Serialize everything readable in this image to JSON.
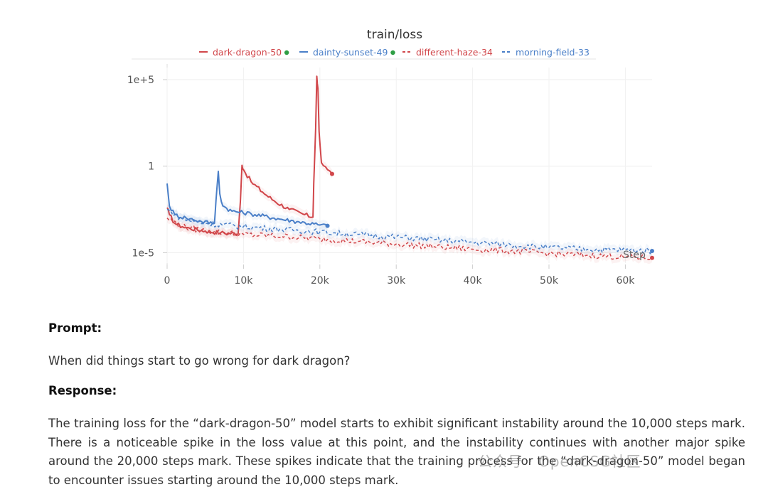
{
  "chart_data": {
    "type": "line",
    "title": "train/loss",
    "xlabel": "Step",
    "ylabel": "",
    "yscale": "log",
    "ylim_log10": [
      -5.6,
      5.7
    ],
    "xlim": [
      0,
      63500
    ],
    "x_ticks": [
      {
        "value": 0,
        "label": "0"
      },
      {
        "value": 10000,
        "label": "10k"
      },
      {
        "value": 20000,
        "label": "20k"
      },
      {
        "value": 30000,
        "label": "30k"
      },
      {
        "value": 40000,
        "label": "40k"
      },
      {
        "value": 50000,
        "label": "50k"
      },
      {
        "value": 60000,
        "label": "60k"
      }
    ],
    "y_ticks": [
      {
        "log10": 5,
        "label": "1e+5"
      },
      {
        "log10": 0,
        "label": "1"
      },
      {
        "log10": -5,
        "label": "1e-5"
      }
    ],
    "series": [
      {
        "name": "dark-dragon-50",
        "color": "#d1464a",
        "dash": "solid",
        "live": true,
        "points": [
          [
            0,
            -2.4
          ],
          [
            300,
            -2.8
          ],
          [
            1000,
            -3.3
          ],
          [
            2000,
            -3.5
          ],
          [
            3000,
            -3.6
          ],
          [
            5000,
            -3.75
          ],
          [
            7000,
            -3.85
          ],
          [
            9300,
            -3.9
          ],
          [
            9600,
            -2.0
          ],
          [
            9800,
            0.05
          ],
          [
            10000,
            -0.2
          ],
          [
            11000,
            -0.9
          ],
          [
            12500,
            -1.5
          ],
          [
            14000,
            -2.0
          ],
          [
            16000,
            -2.5
          ],
          [
            18000,
            -2.8
          ],
          [
            19100,
            -2.95
          ],
          [
            19200,
            -1.0
          ],
          [
            19450,
            2.2
          ],
          [
            19600,
            5.2
          ],
          [
            19750,
            4.5
          ],
          [
            19900,
            2.0
          ],
          [
            20200,
            0.2
          ],
          [
            21000,
            -0.2
          ],
          [
            21600,
            -0.45
          ]
        ]
      },
      {
        "name": "dainty-sunset-49",
        "color": "#4a7fc8",
        "dash": "solid",
        "live": true,
        "points": [
          [
            0,
            -1.0
          ],
          [
            300,
            -2.3
          ],
          [
            1000,
            -2.8
          ],
          [
            2500,
            -3.0
          ],
          [
            4500,
            -3.2
          ],
          [
            6200,
            -3.3
          ],
          [
            6400,
            -2.0
          ],
          [
            6700,
            -0.3
          ],
          [
            6900,
            -1.6
          ],
          [
            7300,
            -2.3
          ],
          [
            8500,
            -2.6
          ],
          [
            11000,
            -2.75
          ],
          [
            14000,
            -3.0
          ],
          [
            17000,
            -3.2
          ],
          [
            20000,
            -3.4
          ],
          [
            21000,
            -3.45
          ]
        ]
      },
      {
        "name": "different-haze-34",
        "color": "#d1464a",
        "dash": "dashed",
        "live": false,
        "points": [
          [
            0,
            -3.0
          ],
          [
            2000,
            -3.5
          ],
          [
            5000,
            -3.75
          ],
          [
            10000,
            -3.95
          ],
          [
            15000,
            -4.05
          ],
          [
            20000,
            -4.2
          ],
          [
            25000,
            -4.35
          ],
          [
            30000,
            -4.5
          ],
          [
            35000,
            -4.65
          ],
          [
            40000,
            -4.8
          ],
          [
            45000,
            -4.9
          ],
          [
            50000,
            -5.05
          ],
          [
            55000,
            -5.15
          ],
          [
            60000,
            -5.25
          ],
          [
            63500,
            -5.3
          ]
        ]
      },
      {
        "name": "morning-field-33",
        "color": "#4a7fc8",
        "dash": "dashed",
        "live": false,
        "points": [
          [
            0,
            -2.5
          ],
          [
            2000,
            -3.05
          ],
          [
            5000,
            -3.3
          ],
          [
            10000,
            -3.5
          ],
          [
            15000,
            -3.65
          ],
          [
            20000,
            -3.8
          ],
          [
            25000,
            -3.95
          ],
          [
            30000,
            -4.1
          ],
          [
            35000,
            -4.25
          ],
          [
            40000,
            -4.4
          ],
          [
            45000,
            -4.55
          ],
          [
            50000,
            -4.7
          ],
          [
            55000,
            -4.8
          ],
          [
            60000,
            -4.85
          ],
          [
            63500,
            -4.9
          ]
        ]
      }
    ],
    "end_markers": [
      {
        "series": "dark-dragon-50",
        "x": 21600,
        "y_log10": -0.45
      },
      {
        "series": "dainty-sunset-49",
        "x": 21000,
        "y_log10": -3.45
      },
      {
        "series": "different-haze-34",
        "x": 63500,
        "y_log10": -5.3
      },
      {
        "series": "morning-field-33",
        "x": 63500,
        "y_log10": -4.9
      }
    ],
    "legend_position": "top",
    "live_dot_color": "#2e9e44"
  },
  "prompt": {
    "label": "Prompt:",
    "text": "When did things start to go wrong for dark dragon?"
  },
  "response": {
    "label": "Response:",
    "text": "The training loss for the “dark-dragon-50” model starts to exhibit significant instability around the 10,000 steps mark. There is a noticeable spike in the loss value at this point, and the instability continues with another major spike around the 20,000 steps mark. These spikes indicate that the training process for the “dark-dragon-50” model began to encounter issues starting around the 10,000 steps mark."
  },
  "watermark": "公众号 · OpenCSG社区"
}
